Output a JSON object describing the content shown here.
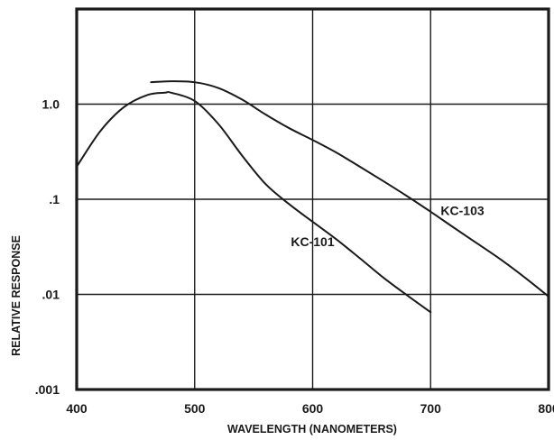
{
  "chart_data": {
    "type": "line",
    "title": "",
    "xlabel": "WAVELENGTH (NANOMETERS)",
    "ylabel": "RELATIVE RESPONSE",
    "xlim": [
      400,
      800
    ],
    "ylim": [
      0.001,
      10
    ],
    "yscale": "log",
    "grid": true,
    "x_ticks": [
      {
        "value": 400,
        "label": "400"
      },
      {
        "value": 500,
        "label": "500"
      },
      {
        "value": 600,
        "label": "600"
      },
      {
        "value": 700,
        "label": "700"
      },
      {
        "value": 800,
        "label": "800"
      }
    ],
    "y_ticks": [
      {
        "value": 0.001,
        "label": ".001"
      },
      {
        "value": 0.01,
        "label": ".01"
      },
      {
        "value": 0.1,
        "label": ".1"
      },
      {
        "value": 1.0,
        "label": "1.0"
      }
    ],
    "series": [
      {
        "name": "KC-101",
        "x": [
          400,
          420,
          440,
          460,
          475,
          480,
          500,
          520,
          540,
          560,
          580,
          600,
          620,
          640,
          660,
          680,
          700
        ],
        "y": [
          0.22,
          0.52,
          0.93,
          1.25,
          1.32,
          1.32,
          1.08,
          0.62,
          0.29,
          0.145,
          0.089,
          0.058,
          0.038,
          0.024,
          0.015,
          0.0098,
          0.0065
        ],
        "label_at": [
          600,
          0.032
        ]
      },
      {
        "name": "KC-103",
        "x": [
          463,
          480,
          500,
          520,
          540,
          560,
          580,
          600,
          620,
          640,
          660,
          680,
          700,
          720,
          740,
          760,
          780,
          800
        ],
        "y": [
          1.7,
          1.74,
          1.7,
          1.48,
          1.12,
          0.78,
          0.56,
          0.42,
          0.31,
          0.22,
          0.155,
          0.108,
          0.074,
          0.05,
          0.034,
          0.023,
          0.015,
          0.0095
        ],
        "label_at": [
          727,
          0.068
        ]
      }
    ]
  }
}
